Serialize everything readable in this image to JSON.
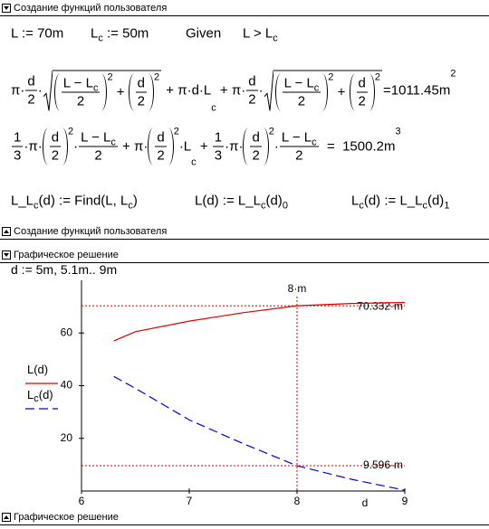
{
  "sections": [
    {
      "title": "Создание функций пользователя",
      "footer": "Создание функций пользователя"
    },
    {
      "title": "Графическое решение",
      "footer": "Графическое решение"
    }
  ],
  "formulas": [
    {
      "items": [
        [
          "L := 70m"
        ],
        [
          "L",
          {
            "sub": [
              "c"
            ]
          },
          " := 50m"
        ],
        [
          "Given"
        ],
        [
          "L > L",
          {
            "sub": [
              "c"
            ]
          }
        ]
      ]
    },
    {
      "items": [
        [
          "π·",
          {
            "frac": [
              [
                "d"
              ],
              [
                "2"
              ]
            ]
          },
          "·",
          {
            "sqrt": [
              {
                "paren": [
                  {
                    "frac": [
                      [
                        "L − L",
                        {
                          "sub": [
                            "c"
                          ]
                        }
                      ],
                      [
                        "2"
                      ]
                    ]
                  }
                ]
              },
              {
                "sup": [
                  "2"
                ]
              },
              " + ",
              {
                "paren": [
                  {
                    "frac": [
                      [
                        "d"
                      ],
                      [
                        "2"
                      ]
                    ]
                  }
                ]
              },
              {
                "sup": [
                  "2"
                ]
              }
            ]
          },
          " + π·d·L",
          {
            "sub": [
              "c"
            ]
          },
          " + π·",
          {
            "frac": [
              [
                "d"
              ],
              [
                "2"
              ]
            ]
          },
          "·",
          {
            "sqrt": [
              {
                "paren": [
                  {
                    "frac": [
                      [
                        "L − L",
                        {
                          "sub": [
                            "c"
                          ]
                        }
                      ],
                      [
                        "2"
                      ]
                    ]
                  }
                ]
              },
              {
                "sup": [
                  "2"
                ]
              },
              " + ",
              {
                "paren": [
                  {
                    "frac": [
                      [
                        "d"
                      ],
                      [
                        "2"
                      ]
                    ]
                  }
                ]
              },
              {
                "sup": [
                  "2"
                ]
              }
            ]
          },
          "=1011.45m",
          {
            "sup": [
              "2"
            ]
          }
        ]
      ]
    },
    {
      "items": [
        [
          {
            "frac": [
              [
                "1"
              ],
              [
                "3"
              ]
            ]
          },
          "·π·",
          {
            "paren": [
              {
                "frac": [
                  [
                    "d"
                  ],
                  [
                    "2"
                  ]
                ]
              }
            ]
          },
          {
            "sup": [
              "2"
            ]
          },
          "·",
          {
            "frac": [
              [
                "L − L",
                {
                  "sub": [
                    "c"
                  ]
                }
              ],
              [
                "2"
              ]
            ]
          },
          " + π·",
          {
            "paren": [
              {
                "frac": [
                  [
                    "d"
                  ],
                  [
                    "2"
                  ]
                ]
              }
            ]
          },
          {
            "sup": [
              "2"
            ]
          },
          "·L",
          {
            "sub": [
              "c"
            ]
          },
          " + ",
          {
            "frac": [
              [
                "1"
              ],
              [
                "3"
              ]
            ]
          },
          "·π·",
          {
            "paren": [
              {
                "frac": [
                  [
                    "d"
                  ],
                  [
                    "2"
                  ]
                ]
              }
            ]
          },
          {
            "sup": [
              "2"
            ]
          },
          "·",
          {
            "frac": [
              [
                "L − L",
                {
                  "sub": [
                    "c"
                  ]
                }
              ],
              [
                "2"
              ]
            ]
          },
          "  =  1500.2m",
          {
            "sup": [
              "3"
            ]
          }
        ]
      ]
    },
    {
      "items": [
        [
          "L_L",
          {
            "sub": [
              "c"
            ]
          },
          "(d) := Find(L, L",
          {
            "sub": [
              "c"
            ]
          },
          ")"
        ],
        [
          "L(d) := L_L",
          {
            "sub": [
              "c"
            ]
          },
          "(d)",
          {
            "sub": [
              "0"
            ]
          }
        ],
        [
          "L",
          {
            "sub": [
              "c"
            ]
          },
          "(d) := L_L",
          {
            "sub": [
              "c"
            ]
          },
          "(d)",
          {
            "sub": [
              "1"
            ]
          }
        ]
      ]
    },
    {
      "items": [
        [
          "d := 5m, 5.1m.. 9m"
        ]
      ]
    }
  ],
  "chart_data": {
    "type": "line",
    "x_label": "d",
    "x": [
      6.3,
      6.5,
      7,
      7.5,
      8,
      8.5,
      9
    ],
    "series": [
      {
        "name": [
          "L(d)"
        ],
        "color": "#e00000",
        "dash": false,
        "values": [
          57,
          60.5,
          64.5,
          67.7,
          70.332,
          71.2,
          71.6
        ]
      },
      {
        "name": [
          "L",
          {
            "sub": [
              "c"
            ]
          },
          "(d)"
        ],
        "color": "#0000e0",
        "dash": true,
        "values": [
          43.5,
          39,
          27,
          18,
          9.596,
          4.5,
          0.3
        ]
      }
    ],
    "xlim": [
      6,
      9
    ],
    "ylim": [
      0,
      80
    ],
    "xticks": [
      6,
      7,
      8,
      9
    ],
    "yticks": [
      20,
      40,
      60
    ],
    "grid": false,
    "markers_x": [
      {
        "value": 8,
        "label": "8·m"
      }
    ],
    "markers_y": [
      {
        "value": 70.332,
        "label": "70.332·m"
      },
      {
        "value": 9.596,
        "label": "9.596·m"
      }
    ]
  }
}
